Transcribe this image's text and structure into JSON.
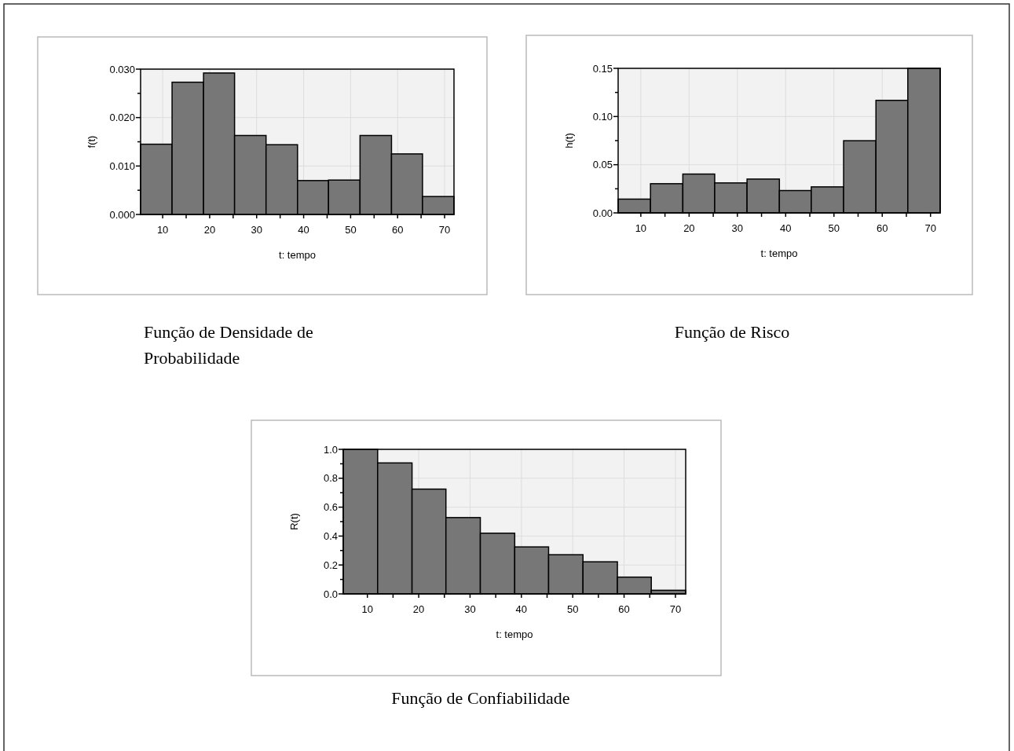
{
  "chart_data": [
    {
      "type": "histogram",
      "title": "Função de Densidade de Probabilidade",
      "xlabel": "t: tempo",
      "ylabel": "f(t)",
      "color": "#777777",
      "grid": true,
      "bins": [
        5.3,
        12,
        18.7,
        25.3,
        32,
        38.7,
        45.3,
        52,
        58.7,
        65.3,
        72
      ],
      "values": [
        0.0145,
        0.0273,
        0.0292,
        0.0163,
        0.0144,
        0.007,
        0.0071,
        0.0163,
        0.0125,
        0.0037
      ],
      "xlim": [
        5.3,
        72
      ],
      "xticks": [
        10,
        {
          "value": 15,
          "label": null
        },
        20,
        {
          "value": 25,
          "label": null
        },
        30,
        {
          "value": 35,
          "label": null
        },
        40,
        {
          "value": 45,
          "label": null
        },
        50,
        {
          "value": 55,
          "label": null
        },
        60,
        {
          "value": 65,
          "label": null
        },
        70
      ],
      "ylim": [
        0,
        0.03
      ],
      "yticks": [
        {
          "value": 0,
          "label": "0.000"
        },
        {
          "value": 0.005,
          "label": null
        },
        {
          "value": 0.01,
          "label": "0.010"
        },
        {
          "value": 0.015,
          "label": null
        },
        {
          "value": 0.02,
          "label": "0.020"
        },
        {
          "value": 0.025,
          "label": null
        },
        {
          "value": 0.03,
          "label": "0.030"
        }
      ]
    },
    {
      "type": "histogram",
      "title": "Função de Risco",
      "xlabel": "t: tempo",
      "ylabel": "h(t)",
      "color": "#777777",
      "grid": true,
      "bins": [
        5.3,
        12,
        18.7,
        25.3,
        32,
        38.7,
        45.3,
        52,
        58.7,
        65.3,
        72
      ],
      "values": [
        0.0143,
        0.0303,
        0.0403,
        0.0311,
        0.0351,
        0.0232,
        0.027,
        0.0749,
        0.1168,
        0.15
      ],
      "xlim": [
        5.3,
        72
      ],
      "xticks": [
        10,
        {
          "value": 15,
          "label": null
        },
        20,
        {
          "value": 25,
          "label": null
        },
        30,
        {
          "value": 35,
          "label": null
        },
        40,
        {
          "value": 45,
          "label": null
        },
        50,
        {
          "value": 55,
          "label": null
        },
        60,
        {
          "value": 65,
          "label": null
        },
        70
      ],
      "ylim": [
        0,
        0.15
      ],
      "yticks": [
        {
          "value": 0,
          "label": "0.00"
        },
        {
          "value": 0.025,
          "label": null
        },
        {
          "value": 0.05,
          "label": "0.05"
        },
        {
          "value": 0.075,
          "label": null
        },
        {
          "value": 0.1,
          "label": "0.10"
        },
        {
          "value": 0.125,
          "label": null
        },
        {
          "value": 0.15,
          "label": "0.15"
        }
      ]
    },
    {
      "type": "histogram",
      "title": "Função de Confiabilidade",
      "xlabel": "t: tempo",
      "ylabel": "R(t)",
      "color": "#777777",
      "grid": true,
      "bins": [
        5.3,
        12,
        18.7,
        25.3,
        32,
        38.7,
        45.3,
        52,
        58.7,
        65.3,
        72
      ],
      "values": [
        1.0,
        0.906,
        0.725,
        0.528,
        0.42,
        0.325,
        0.271,
        0.222,
        0.116,
        0.025
      ],
      "xlim": [
        5.3,
        72
      ],
      "xticks": [
        10,
        {
          "value": 15,
          "label": null
        },
        20,
        {
          "value": 25,
          "label": null
        },
        30,
        {
          "value": 35,
          "label": null
        },
        40,
        {
          "value": 45,
          "label": null
        },
        50,
        {
          "value": 55,
          "label": null
        },
        60,
        {
          "value": 65,
          "label": null
        },
        70
      ],
      "ylim": [
        0,
        1
      ],
      "yticks": [
        {
          "value": 0,
          "label": "0.0"
        },
        {
          "value": 0.1,
          "label": null
        },
        {
          "value": 0.2,
          "label": "0.2"
        },
        {
          "value": 0.3,
          "label": null
        },
        {
          "value": 0.4,
          "label": "0.4"
        },
        {
          "value": 0.5,
          "label": null
        },
        {
          "value": 0.6,
          "label": "0.6"
        },
        {
          "value": 0.7,
          "label": null
        },
        {
          "value": 0.8,
          "label": "0.8"
        },
        {
          "value": 0.9,
          "label": null
        },
        {
          "value": 1,
          "label": "1.0"
        }
      ]
    }
  ]
}
